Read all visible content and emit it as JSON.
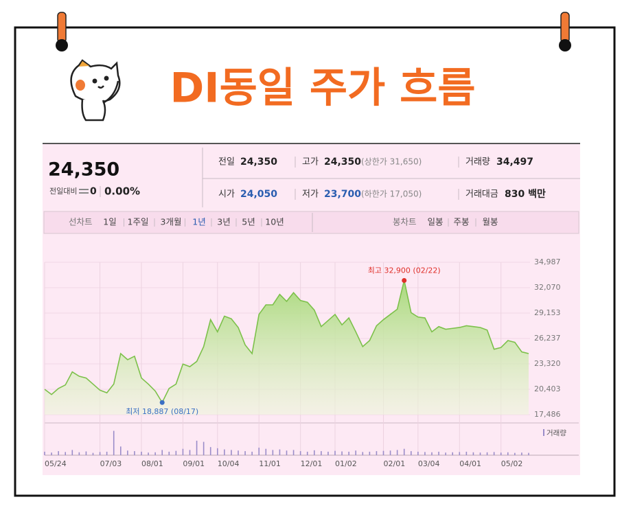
{
  "header": {
    "title": "DI동일 주가 흐름"
  },
  "quote": {
    "price": "24,350",
    "change_label": "전일대비",
    "change": "0",
    "change_pct": "0.00%",
    "items": [
      {
        "label": "전일",
        "value": "24,350"
      },
      {
        "label": "고가",
        "value": "24,350",
        "extra": "(상한가 31,650)"
      },
      {
        "label": "거래량",
        "value": "34,497"
      },
      {
        "label": "시가",
        "value": "24,050"
      },
      {
        "label": "저가",
        "value": "23,700",
        "extra": "(하한가 17,050)"
      },
      {
        "label": "거래대금",
        "value": "830 백만"
      }
    ]
  },
  "tabs": {
    "line_label": "선차트",
    "periods": [
      "1일",
      "1주일",
      "3개월",
      "1년",
      "3년",
      "5년",
      "10년"
    ],
    "selected": "1년",
    "candle_label": "봉차트",
    "candles": [
      "일봉",
      "주봉",
      "월봉"
    ]
  },
  "chart_data": [
    {
      "type": "line",
      "color": "#7cc04a",
      "categories": [
        "05/24",
        null,
        null,
        null,
        null,
        null,
        null,
        null,
        "07/03",
        null,
        null,
        null,
        null,
        null,
        "08/01",
        null,
        null,
        null,
        null,
        null,
        "09/01",
        null,
        null,
        null,
        null,
        "10/04",
        null,
        null,
        null,
        null,
        null,
        "11/01",
        null,
        null,
        null,
        null,
        null,
        "12/01",
        null,
        null,
        null,
        null,
        "01/02",
        null,
        null,
        null,
        null,
        null,
        null,
        "02/01",
        null,
        null,
        null,
        null,
        "03/04",
        null,
        null,
        null,
        null,
        null,
        "04/01",
        null,
        null,
        null,
        null,
        null,
        "05/02",
        null,
        null,
        null,
        null
      ],
      "values": [
        20400,
        19800,
        20500,
        20900,
        22400,
        21900,
        21700,
        21000,
        20300,
        20000,
        21000,
        24500,
        23800,
        24200,
        21700,
        21000,
        20200,
        18887,
        20500,
        21000,
        23300,
        23000,
        23600,
        25300,
        28400,
        27000,
        28800,
        28500,
        27500,
        25500,
        24500,
        29000,
        30100,
        30100,
        31300,
        30500,
        31500,
        30600,
        30400,
        29500,
        27600,
        28300,
        29000,
        27800,
        28600,
        27000,
        25300,
        26000,
        27700,
        28400,
        29000,
        29600,
        32900,
        29200,
        28700,
        28600,
        27000,
        27600,
        27300,
        27400,
        27500,
        27700,
        27600,
        27500,
        27200,
        25000,
        25200,
        26000,
        25800,
        24700,
        24500
      ],
      "ylim": [
        17486,
        34987
      ],
      "yticks": [
        {
          "value": 34987,
          "label": "34,987"
        },
        {
          "value": 32070,
          "label": "32,070"
        },
        {
          "value": 29153,
          "label": "29,153"
        },
        {
          "value": 26237,
          "label": "26,237"
        },
        {
          "value": 23320,
          "label": "23,320"
        },
        {
          "value": 20403,
          "label": "20,403"
        },
        {
          "value": 17486,
          "label": "17,486"
        }
      ],
      "grid": true,
      "annotations": [
        "최고 32,900 (02/22)",
        "최저 18,887 (08/17)"
      ]
    },
    {
      "type": "bar",
      "name": "거래량",
      "color": "#9a8cc9",
      "ylim": [
        0,
        450000
      ],
      "values": [
        60000,
        45000,
        70000,
        55000,
        90000,
        50000,
        65000,
        40000,
        55000,
        60000,
        420000,
        150000,
        80000,
        70000,
        60000,
        45000,
        50000,
        90000,
        60000,
        75000,
        110000,
        90000,
        250000,
        230000,
        140000,
        120000,
        100000,
        90000,
        80000,
        70000,
        60000,
        130000,
        110000,
        90000,
        100000,
        80000,
        90000,
        70000,
        60000,
        85000,
        70000,
        60000,
        75000,
        65000,
        60000,
        80000,
        55000,
        60000,
        70000,
        75000,
        80000,
        90000,
        110000,
        70000,
        60000,
        55000,
        50000,
        60000,
        45000,
        50000,
        55000,
        60000,
        50000,
        45000,
        50000,
        55000,
        45000,
        50000,
        40000,
        45000,
        40000
      ]
    }
  ]
}
